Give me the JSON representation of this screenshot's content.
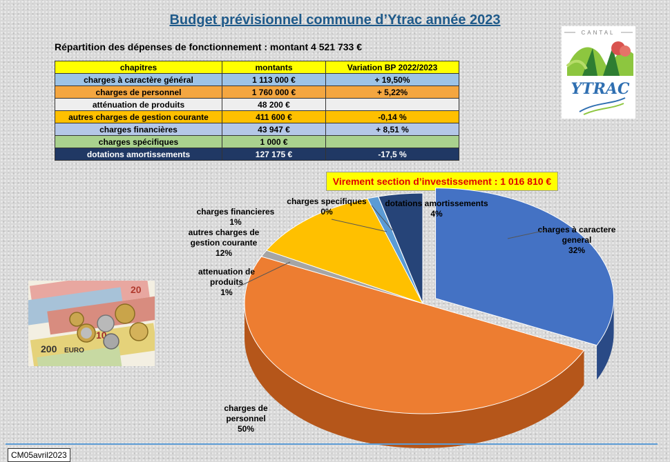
{
  "title": "Budget prévisionnel commune d’Ytrac année 2023",
  "subtitle": "Répartition des dépenses de fonctionnement : montant 4 521 733 €",
  "table": {
    "headers": [
      "chapitres",
      "montants",
      "Variation BP 2022/2023"
    ],
    "rows": [
      {
        "chapitre": "charges à caractère général",
        "montant": "1 113 000 €",
        "variation": "+ 19,50%",
        "bg": "#9dc3e6"
      },
      {
        "chapitre": "charges de personnel",
        "montant": "1 760 000 €",
        "variation": "+ 5,22%",
        "bg": "#f4a640"
      },
      {
        "chapitre": "atténuation de produits",
        "montant": "48 200 €",
        "variation": "",
        "bg": "#eeeeee"
      },
      {
        "chapitre": "autres charges de gestion courante",
        "montant": "411 600 €",
        "variation": "-0,14 %",
        "bg": "#ffc000"
      },
      {
        "chapitre": "charges financières",
        "montant": "43 947 €",
        "variation": "+ 8,51 %",
        "bg": "#b4c7e7"
      },
      {
        "chapitre": "charges spécifiques",
        "montant": "1 000 €",
        "variation": "",
        "bg": "#a9d18e"
      },
      {
        "chapitre": "dotations amortissements",
        "montant": "127 175 €",
        "variation": "-17,5 %",
        "bg": "#203864",
        "fg": "#ffffff"
      }
    ],
    "header_bg": "#ffff00"
  },
  "virement": "Virement section d’investissement : 1 016 810 €",
  "logo": {
    "top_text": "CANTAL",
    "name": "YTRAC"
  },
  "money_image": {
    "note_labels": [
      "20",
      "10",
      "200",
      "EURO"
    ]
  },
  "stamp": "CM05avril2023",
  "chart_data": {
    "type": "pie",
    "slices": [
      {
        "label_lines": [
          "charges à caractere",
          "general"
        ],
        "pct_label": "32%",
        "value": 32,
        "color": "#4472c4",
        "dark": "#2a4a86"
      },
      {
        "label_lines": [
          "charges de",
          "personnel"
        ],
        "pct_label": "50%",
        "value": 50,
        "color": "#ed7d31",
        "dark": "#b5561a"
      },
      {
        "label_lines": [
          "attenuation de",
          "produits"
        ],
        "pct_label": "1%",
        "value": 1,
        "color": "#a5a5a5",
        "dark": "#6e6e6e"
      },
      {
        "label_lines": [
          "autres charges de",
          "gestion courante"
        ],
        "pct_label": "12%",
        "value": 12,
        "color": "#ffc000",
        "dark": "#b88900"
      },
      {
        "label_lines": [
          "charges financieres"
        ],
        "pct_label": "1%",
        "value": 1,
        "color": "#5b9bd5",
        "dark": "#3a6c9c"
      },
      {
        "label_lines": [
          "charges specifiques"
        ],
        "pct_label": "0%",
        "value": 0.02,
        "color": "#70ad47",
        "dark": "#4a7a2c"
      },
      {
        "label_lines": [
          "dotations amortissements"
        ],
        "pct_label": "4%",
        "value": 4,
        "color": "#264478",
        "dark": "#142848"
      }
    ]
  }
}
